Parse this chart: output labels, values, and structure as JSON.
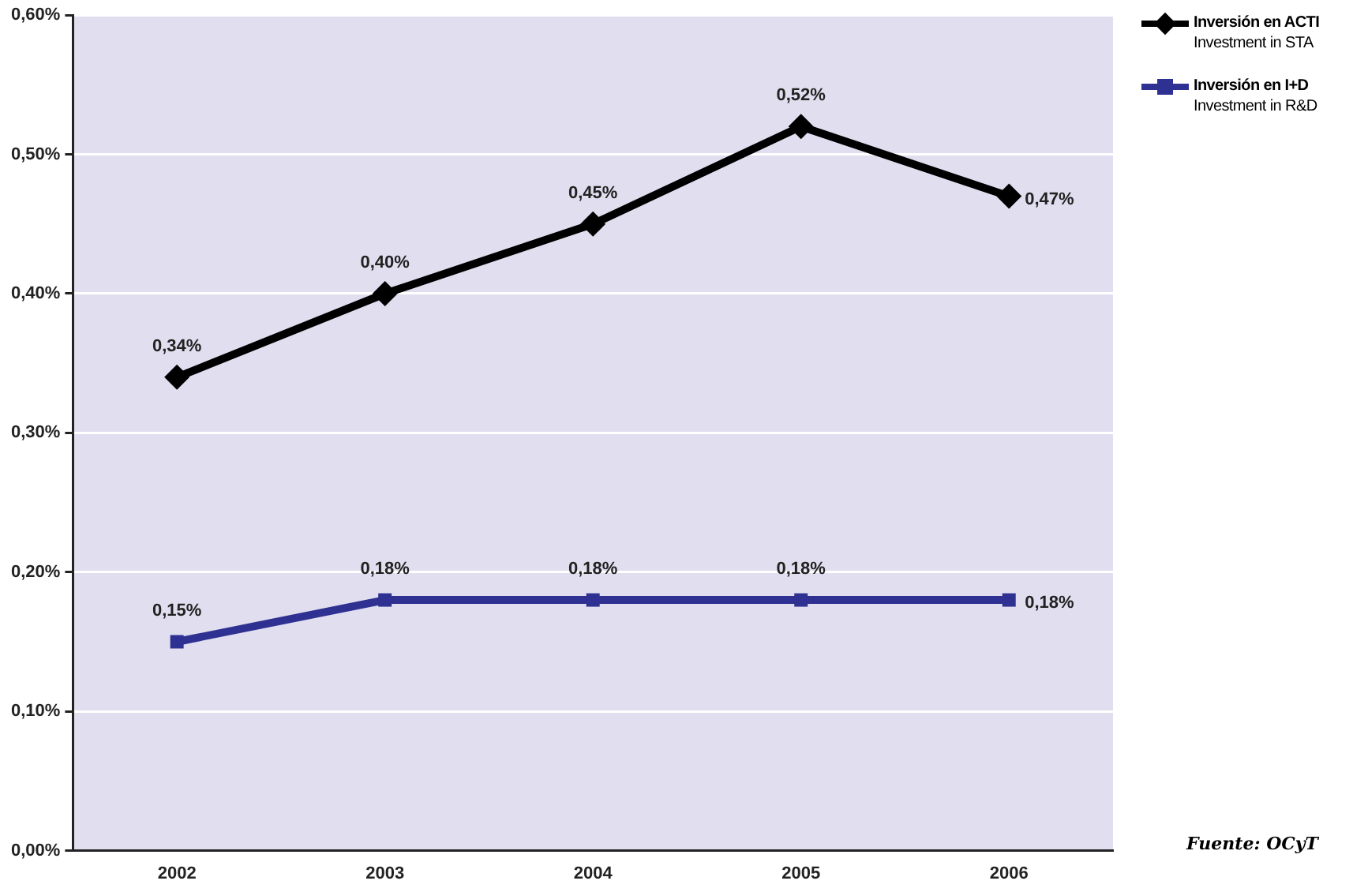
{
  "chart_data": {
    "type": "line",
    "categories": [
      "2002",
      "2003",
      "2004",
      "2005",
      "2006"
    ],
    "series": [
      {
        "name": "Inversión en ACTI\nInvestment in STA",
        "color": "#000000",
        "marker": "diamond",
        "values": [
          0.34,
          0.4,
          0.45,
          0.52,
          0.47
        ],
        "value_labels": [
          "0,34%",
          "0,40%",
          "0,45%",
          "0,52%",
          "0,47%"
        ]
      },
      {
        "name": "Inversión en I+D\nInvestment in R&D",
        "color": "#2e3192",
        "marker": "square",
        "values": [
          0.15,
          0.18,
          0.18,
          0.18,
          0.18
        ],
        "value_labels": [
          "0,15%",
          "0,18%",
          "0,18%",
          "0,18%",
          "0,18%"
        ]
      }
    ],
    "ylim": [
      0,
      0.6
    ],
    "yticks": [
      {
        "value": 0,
        "label": "0,00%"
      },
      {
        "value": 0.1,
        "label": "0,10%"
      },
      {
        "value": 0.2,
        "label": "0,20%"
      },
      {
        "value": 0.3,
        "label": "0,30%"
      },
      {
        "value": 0.4,
        "label": "0,40%"
      },
      {
        "value": 0.5,
        "label": "0,50%"
      },
      {
        "value": 0.6,
        "label": "0,60%"
      }
    ],
    "grid": "y",
    "legend": "top right",
    "line_style": "solid",
    "annotations": [
      "Fuente: OCyT"
    ]
  }
}
